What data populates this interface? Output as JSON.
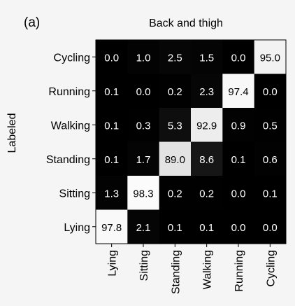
{
  "panel_label": "(a)",
  "chart_data": {
    "type": "heatmap",
    "title": "Back and thigh",
    "xlabel": "",
    "ylabel": "Labeled",
    "x_categories": [
      "Lying",
      "Sitting",
      "Standing",
      "Walking",
      "Running",
      "Cycling"
    ],
    "y_categories": [
      "Cycling",
      "Running",
      "Walking",
      "Standing",
      "Sitting",
      "Lying"
    ],
    "values": [
      [
        0.0,
        1.0,
        2.5,
        1.5,
        0.0,
        95.0
      ],
      [
        0.1,
        0.0,
        0.2,
        2.3,
        97.4,
        0.0
      ],
      [
        0.1,
        0.3,
        5.3,
        92.9,
        0.9,
        0.5
      ],
      [
        0.1,
        1.7,
        89.0,
        8.6,
        0.1,
        0.6
      ],
      [
        1.3,
        98.3,
        0.2,
        0.2,
        0.0,
        0.1
      ],
      [
        97.8,
        2.1,
        0.1,
        0.1,
        0.0,
        0.0
      ]
    ],
    "value_range": [
      0,
      100
    ],
    "colormap": {
      "low": "#000000",
      "high": "#ffffff"
    },
    "grid": false,
    "legend": "none"
  }
}
